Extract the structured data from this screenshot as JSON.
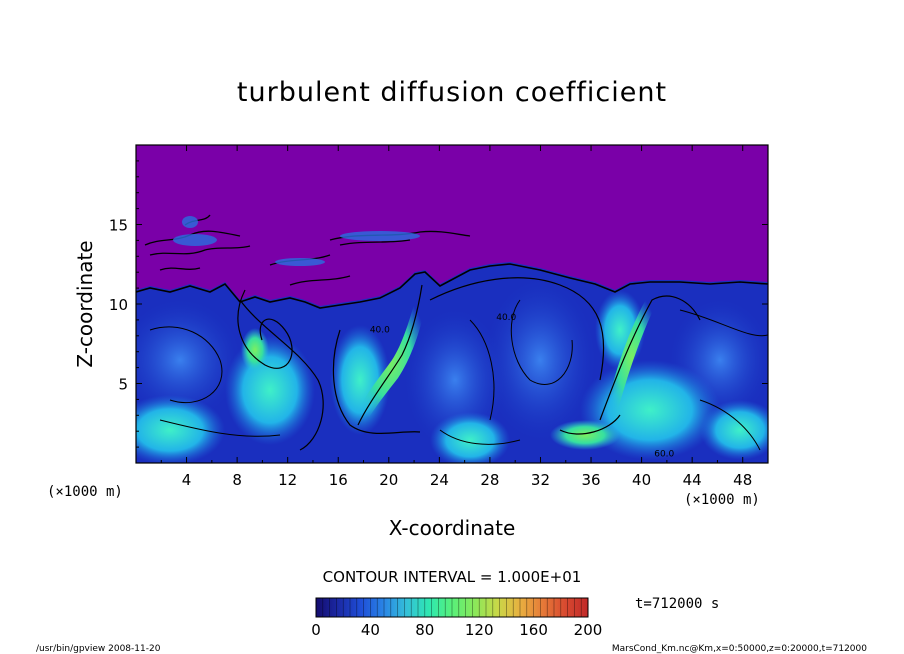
{
  "chart_data": {
    "type": "heatmap",
    "title": "turbulent diffusion coefficient",
    "xlabel": "X-coordinate",
    "ylabel": "Z-coordinate",
    "x_unit_left": "(×1000 m)",
    "x_unit_right": "(×1000 m)",
    "xlim": [
      0,
      50
    ],
    "ylim": [
      0,
      20
    ],
    "x_ticks": [
      4,
      8,
      12,
      16,
      20,
      24,
      28,
      32,
      36,
      40,
      44,
      48
    ],
    "y_ticks": [
      5,
      10,
      15
    ],
    "contour_interval_text": "CONTOUR INTERVAL = 1.000E+01",
    "contour_labels": [
      {
        "text": "40.0",
        "x": 18.5,
        "z": 8.2
      },
      {
        "text": "40.0",
        "x": 28.5,
        "z": 9.0
      },
      {
        "text": "60.0",
        "x": 41.0,
        "z": 0.4
      }
    ],
    "colorbar": {
      "min": 0,
      "max": 200,
      "ticks": [
        0,
        40,
        80,
        120,
        160,
        200
      ],
      "colors": [
        "#140c6e",
        "#1b2aa6",
        "#1f4fd8",
        "#2a86e6",
        "#34c0d8",
        "#2fe8b0",
        "#58f07a",
        "#8ae85a",
        "#c8d848",
        "#e8b040",
        "#e67a38",
        "#d84a30",
        "#c02828"
      ]
    },
    "time_label": "t=712000 s",
    "background_color": "#7a00a8"
  },
  "footer": {
    "left": "/usr/bin/gpview   2008-11-20",
    "right": "MarsCond_Km.nc@Km,x=0:50000,z=0:20000,t=712000"
  }
}
